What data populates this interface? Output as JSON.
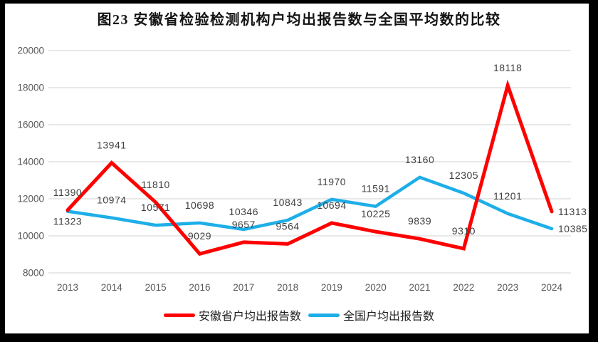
{
  "title": "图23 安徽省检验检测机构户均出报告数与全国平均数的比较",
  "chart_data": {
    "type": "line",
    "categories": [
      "2013",
      "2014",
      "2015",
      "2016",
      "2017",
      "2018",
      "2019",
      "2020",
      "2021",
      "2022",
      "2023",
      "2024"
    ],
    "series": [
      {
        "name": "安徽省户均出报告数",
        "color": "#FE0000",
        "values": [
          11390,
          13941,
          11810,
          9029,
          9657,
          9564,
          10694,
          10225,
          9839,
          9310,
          18118,
          11313
        ]
      },
      {
        "name": "全国户均出报告数",
        "color": "#1EAEE8",
        "values": [
          11323,
          10974,
          10571,
          10698,
          10346,
          10843,
          11970,
          11591,
          13160,
          12305,
          11201,
          10385
        ]
      }
    ],
    "yticks": [
      8000,
      10000,
      12000,
      14000,
      16000,
      18000,
      20000
    ],
    "ylim": [
      8000,
      20000
    ],
    "grid": true,
    "legend_position": "bottom",
    "gridline_color": "#D9D9D9",
    "axis_label_color": "#595959",
    "data_label_color": "#3F3F3F",
    "frame_color": "#000000"
  }
}
